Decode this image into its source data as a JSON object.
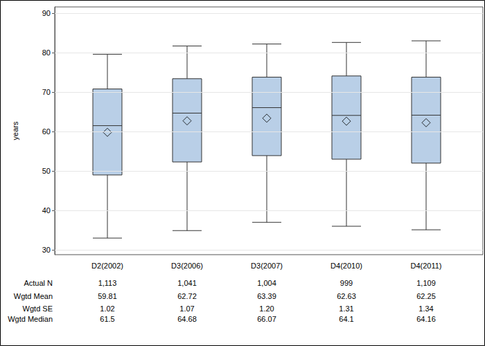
{
  "chart_data": {
    "type": "boxplot",
    "ylabel": "years",
    "categories": [
      "D2(2002)",
      "D3(2006)",
      "D3(2007)",
      "D4(2010)",
      "D4(2011)"
    ],
    "boxes": [
      {
        "low": 33.0,
        "q1": 49.0,
        "median": 61.5,
        "q3": 70.8,
        "high": 79.6
      },
      {
        "low": 34.9,
        "q1": 52.3,
        "median": 64.68,
        "q3": 73.4,
        "high": 81.7
      },
      {
        "low": 37.0,
        "q1": 53.9,
        "median": 66.07,
        "q3": 73.8,
        "high": 82.2
      },
      {
        "low": 36.0,
        "q1": 53.0,
        "median": 64.1,
        "q3": 74.1,
        "high": 82.6
      },
      {
        "low": 35.1,
        "q1": 52.0,
        "median": 64.16,
        "q3": 73.8,
        "high": 83.0
      }
    ],
    "means": [
      59.81,
      62.72,
      63.39,
      62.63,
      62.25
    ],
    "n": [
      "1,113",
      "1,041",
      "1,004",
      "999",
      "1,109"
    ],
    "se": [
      "1.02",
      "1.07",
      "1.20",
      "1.31",
      "1.34"
    ],
    "stat_labels": {
      "n": "Actual N",
      "mean": "Wgtd Mean",
      "se": "Wgtd SE",
      "median": "Wgtd Median"
    },
    "color": "#b9cfe7",
    "marker": "diamond",
    "ylim": [
      28.8,
      91.6
    ],
    "yticks": [
      30,
      40,
      50,
      60,
      70,
      80,
      90
    ],
    "grid": true
  }
}
